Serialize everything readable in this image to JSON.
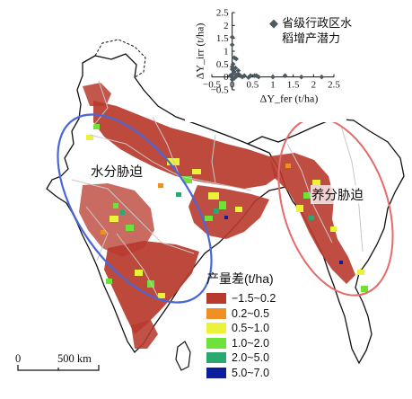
{
  "inset": {
    "ylabel": "ΔY_irr (t/ha)",
    "xlabel": "ΔY_fer (t/ha)",
    "legend": "省级行政区水稻增产潜力",
    "legend_line1": "省级行政区水",
    "legend_line2": "稻增产潜力",
    "x_ticks": [
      "−0.5",
      "0",
      "0.5",
      "1",
      "1.5",
      "2",
      "2.5"
    ],
    "y_ticks": [
      "2.5",
      "2",
      "1.5",
      "1",
      "0.5",
      "0",
      "−0.5"
    ]
  },
  "chart_data": {
    "type": "scatter",
    "xlim": [
      -0.5,
      2.5
    ],
    "ylim": [
      -0.5,
      2.5
    ],
    "series": [
      {
        "name": "省级行政区水稻增产潜力",
        "points": [
          [
            0.0,
            1.55
          ],
          [
            0.0,
            1.25
          ],
          [
            0.05,
            0.75
          ],
          [
            0.1,
            0.7
          ],
          [
            0.02,
            0.5
          ],
          [
            0.0,
            0.4
          ],
          [
            0.08,
            0.35
          ],
          [
            0.0,
            0.3
          ],
          [
            0.15,
            0.25
          ],
          [
            0.05,
            0.2
          ],
          [
            0.0,
            0.1
          ],
          [
            0.1,
            0.08
          ],
          [
            0.2,
            0.05
          ],
          [
            0.3,
            0.05
          ],
          [
            0.45,
            0.05
          ],
          [
            0.55,
            0.05
          ],
          [
            0.6,
            0.05
          ],
          [
            0.65,
            0.0
          ],
          [
            0.0,
            0.0
          ],
          [
            0.05,
            -0.05
          ],
          [
            0.25,
            0.0
          ],
          [
            1.0,
            0.0
          ],
          [
            1.3,
            0.05
          ],
          [
            1.7,
            0.0
          ],
          [
            2.2,
            0.0
          ],
          [
            0.0,
            -0.1
          ],
          [
            0.1,
            0.02
          ],
          [
            0.4,
            -0.02
          ],
          [
            0.15,
            0.12
          ],
          [
            -0.05,
            0.05
          ]
        ]
      }
    ],
    "marker_color": "#4d5a60"
  },
  "legend": {
    "title": "产量差(t/ha)",
    "items": [
      {
        "label": "−1.5~0.2",
        "color": "#b83a2d"
      },
      {
        "label": "0.2~0.5",
        "color": "#ef8f24"
      },
      {
        "label": "0.5~1.0",
        "color": "#ebf239"
      },
      {
        "label": "1.0~2.0",
        "color": "#6fe23a"
      },
      {
        "label": "2.0~5.0",
        "color": "#2aa86f"
      },
      {
        "label": "5.0~7.0",
        "color": "#0a1e9c"
      }
    ]
  },
  "labels": {
    "water_stress": "水分胁迫",
    "nutrient_stress": "养分胁迫"
  },
  "scale": {
    "zero": "0",
    "distance": "500 km"
  },
  "colors": {
    "water_ellipse": "#4b67d6",
    "nutrient_ellipse": "#e56a6a"
  }
}
